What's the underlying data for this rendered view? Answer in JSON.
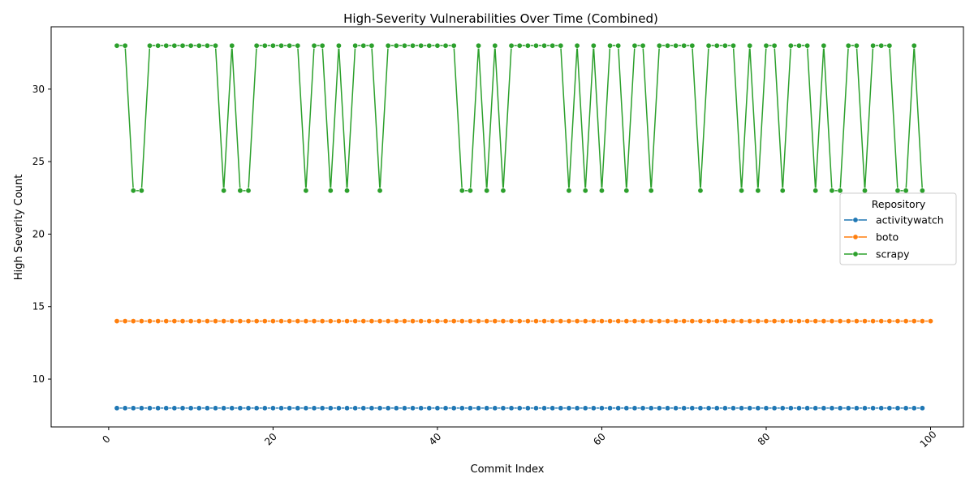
{
  "chart_data": {
    "type": "line",
    "title": "High-Severity Vulnerabilities Over Time (Combined)",
    "xlabel": "Commit Index",
    "ylabel": "High Severity Count",
    "xlim": [
      -7,
      104
    ],
    "ylim": [
      6.7,
      34.3
    ],
    "xticks": [
      0,
      20,
      40,
      60,
      80,
      100
    ],
    "yticks": [
      10,
      15,
      20,
      25,
      30
    ],
    "grid": false,
    "legend": {
      "title": "Repository",
      "placement": "center-right"
    },
    "series": [
      {
        "name": "activitywatch",
        "color": "#1f77b4",
        "x_start": 1,
        "values": [
          8,
          8,
          8,
          8,
          8,
          8,
          8,
          8,
          8,
          8,
          8,
          8,
          8,
          8,
          8,
          8,
          8,
          8,
          8,
          8,
          8,
          8,
          8,
          8,
          8,
          8,
          8,
          8,
          8,
          8,
          8,
          8,
          8,
          8,
          8,
          8,
          8,
          8,
          8,
          8,
          8,
          8,
          8,
          8,
          8,
          8,
          8,
          8,
          8,
          8,
          8,
          8,
          8,
          8,
          8,
          8,
          8,
          8,
          8,
          8,
          8,
          8,
          8,
          8,
          8,
          8,
          8,
          8,
          8,
          8,
          8,
          8,
          8,
          8,
          8,
          8,
          8,
          8,
          8,
          8,
          8,
          8,
          8,
          8,
          8,
          8,
          8,
          8,
          8,
          8,
          8,
          8,
          8,
          8,
          8,
          8,
          8,
          8,
          8
        ]
      },
      {
        "name": "boto",
        "color": "#ff7f0e",
        "x_start": 1,
        "values": [
          14,
          14,
          14,
          14,
          14,
          14,
          14,
          14,
          14,
          14,
          14,
          14,
          14,
          14,
          14,
          14,
          14,
          14,
          14,
          14,
          14,
          14,
          14,
          14,
          14,
          14,
          14,
          14,
          14,
          14,
          14,
          14,
          14,
          14,
          14,
          14,
          14,
          14,
          14,
          14,
          14,
          14,
          14,
          14,
          14,
          14,
          14,
          14,
          14,
          14,
          14,
          14,
          14,
          14,
          14,
          14,
          14,
          14,
          14,
          14,
          14,
          14,
          14,
          14,
          14,
          14,
          14,
          14,
          14,
          14,
          14,
          14,
          14,
          14,
          14,
          14,
          14,
          14,
          14,
          14,
          14,
          14,
          14,
          14,
          14,
          14,
          14,
          14,
          14,
          14,
          14,
          14,
          14,
          14,
          14,
          14,
          14,
          14,
          14,
          14
        ]
      },
      {
        "name": "scrapy",
        "color": "#2ca02c",
        "x_start": 1,
        "values": [
          33,
          33,
          23,
          23,
          33,
          33,
          33,
          33,
          33,
          33,
          33,
          33,
          33,
          23,
          33,
          23,
          23,
          33,
          33,
          33,
          33,
          33,
          33,
          23,
          33,
          33,
          23,
          33,
          23,
          33,
          33,
          33,
          23,
          33,
          33,
          33,
          33,
          33,
          33,
          33,
          33,
          33,
          23,
          23,
          33,
          23,
          33,
          23,
          33,
          33,
          33,
          33,
          33,
          33,
          33,
          23,
          33,
          23,
          33,
          23,
          33,
          33,
          23,
          33,
          33,
          23,
          33,
          33,
          33,
          33,
          33,
          23,
          33,
          33,
          33,
          33,
          23,
          33,
          23,
          33,
          33,
          23,
          33,
          33,
          33,
          23,
          33,
          23,
          23,
          33,
          33,
          23,
          33,
          33,
          33,
          23,
          23,
          33,
          23
        ]
      }
    ]
  }
}
